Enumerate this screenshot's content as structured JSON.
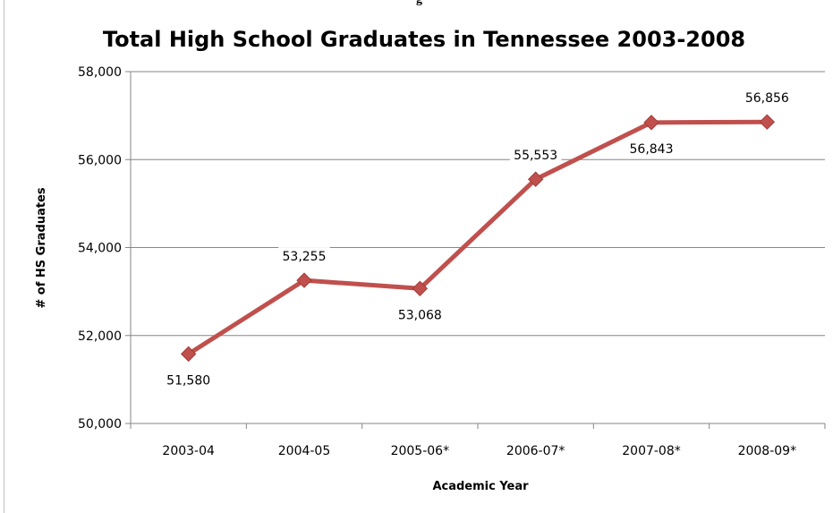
{
  "header_fragment": "g",
  "chart_data": {
    "type": "line",
    "title": "Total High School Graduates in Tennessee 2003-2008",
    "xlabel": "Academic Year",
    "ylabel": "# of HS Graduates",
    "categories": [
      "2003-04",
      "2004-05",
      "2005-06*",
      "2006-07*",
      "2007-08*",
      "2008-09*"
    ],
    "series": [
      {
        "values": [
          51580,
          53255,
          53068,
          55553,
          56843,
          56856
        ],
        "labels": [
          "51,580",
          "53,255",
          "53,068",
          "55,553",
          "56,843",
          "56,856"
        ]
      }
    ],
    "ylim": [
      50000,
      58000
    ],
    "yticks": [
      50000,
      52000,
      54000,
      56000,
      58000
    ],
    "ytick_labels": [
      "50,000",
      "52,000",
      "54,000",
      "56,000",
      "58,000"
    ],
    "grid": "horizontal",
    "legend": "none",
    "colors": {
      "line": "#c0504d",
      "marker": "#c0504d",
      "grid": "#868686",
      "label_bg": "#ffffff"
    }
  }
}
